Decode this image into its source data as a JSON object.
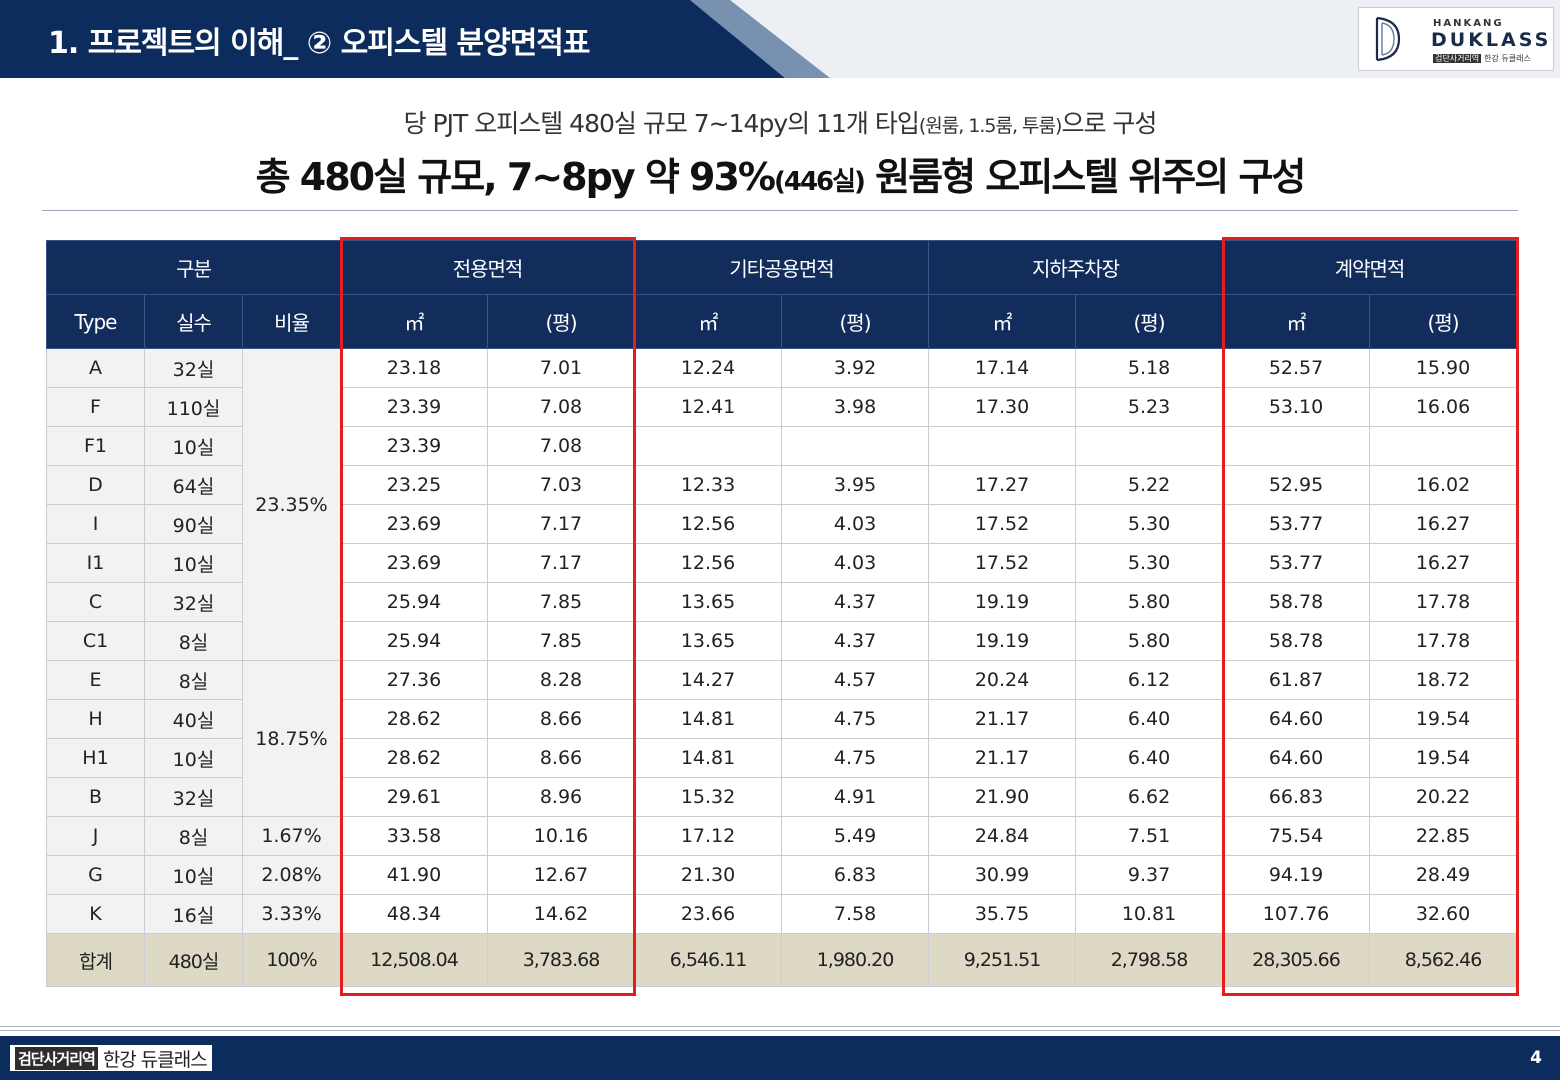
{
  "header": {
    "title": "1. 프로젝트의 이해_ ② 오피스텔 분양면적표",
    "logo": {
      "top": "HANKANG",
      "main": "DUKLASS",
      "tag_box": "검단사거리역",
      "tag_text": "한강 듀클래스"
    }
  },
  "summary": {
    "line1_a": "당 PJT 오피스텔 480실 규모 7~14py의 11개 타입",
    "line1_small": "(원룸, 1.5룸, 투룸)",
    "line1_b": "으로 구성",
    "line2_a": "총 480실 규모, 7~8py 약 93%",
    "line2_small": "(446실)",
    "line2_b": " 원룸형 오피스텔 위주의 구성"
  },
  "table": {
    "groups": [
      "구분",
      "전용면적",
      "기타공용면적",
      "지하주차장",
      "계약면적"
    ],
    "subheaders": [
      "Type",
      "실수",
      "비율",
      "㎡",
      "(평)",
      "㎡",
      "(평)",
      "㎡",
      "(평)",
      "㎡",
      "(평)"
    ],
    "ratios": [
      "23.35%",
      "18.75%",
      "1.67%",
      "2.08%",
      "3.33%"
    ],
    "rows": [
      [
        "A",
        "32실",
        "23.18",
        "7.01",
        "12.24",
        "3.92",
        "17.14",
        "5.18",
        "52.57",
        "15.90"
      ],
      [
        "F",
        "110실",
        "23.39",
        "7.08",
        "12.41",
        "3.98",
        "17.30",
        "5.23",
        "53.10",
        "16.06"
      ],
      [
        "F1",
        "10실",
        "23.39",
        "7.08",
        "",
        "",
        "",
        "",
        "",
        ""
      ],
      [
        "D",
        "64실",
        "23.25",
        "7.03",
        "12.33",
        "3.95",
        "17.27",
        "5.22",
        "52.95",
        "16.02"
      ],
      [
        "I",
        "90실",
        "23.69",
        "7.17",
        "12.56",
        "4.03",
        "17.52",
        "5.30",
        "53.77",
        "16.27"
      ],
      [
        "I1",
        "10실",
        "23.69",
        "7.17",
        "12.56",
        "4.03",
        "17.52",
        "5.30",
        "53.77",
        "16.27"
      ],
      [
        "C",
        "32실",
        "25.94",
        "7.85",
        "13.65",
        "4.37",
        "19.19",
        "5.80",
        "58.78",
        "17.78"
      ],
      [
        "C1",
        "8실",
        "25.94",
        "7.85",
        "13.65",
        "4.37",
        "19.19",
        "5.80",
        "58.78",
        "17.78"
      ],
      [
        "E",
        "8실",
        "27.36",
        "8.28",
        "14.27",
        "4.57",
        "20.24",
        "6.12",
        "61.87",
        "18.72"
      ],
      [
        "H",
        "40실",
        "28.62",
        "8.66",
        "14.81",
        "4.75",
        "21.17",
        "6.40",
        "64.60",
        "19.54"
      ],
      [
        "H1",
        "10실",
        "28.62",
        "8.66",
        "14.81",
        "4.75",
        "21.17",
        "6.40",
        "64.60",
        "19.54"
      ],
      [
        "B",
        "32실",
        "29.61",
        "8.96",
        "15.32",
        "4.91",
        "21.90",
        "6.62",
        "66.83",
        "20.22"
      ],
      [
        "J",
        "8실",
        "33.58",
        "10.16",
        "17.12",
        "5.49",
        "24.84",
        "7.51",
        "75.54",
        "22.85"
      ],
      [
        "G",
        "10실",
        "41.90",
        "12.67",
        "21.30",
        "6.83",
        "30.99",
        "9.37",
        "94.19",
        "28.49"
      ],
      [
        "K",
        "16실",
        "48.34",
        "14.62",
        "23.66",
        "7.58",
        "35.75",
        "10.81",
        "107.76",
        "32.60"
      ]
    ],
    "total": [
      "합계",
      "480실",
      "100%",
      "12,508.04",
      "3,783.68",
      "6,546.11",
      "1,980.20",
      "9,251.51",
      "2,798.58",
      "28,305.66",
      "8,562.46"
    ]
  },
  "footer": {
    "brand_box": "검단사거리역",
    "brand_text": "한강 듀클래스",
    "page": "4"
  }
}
